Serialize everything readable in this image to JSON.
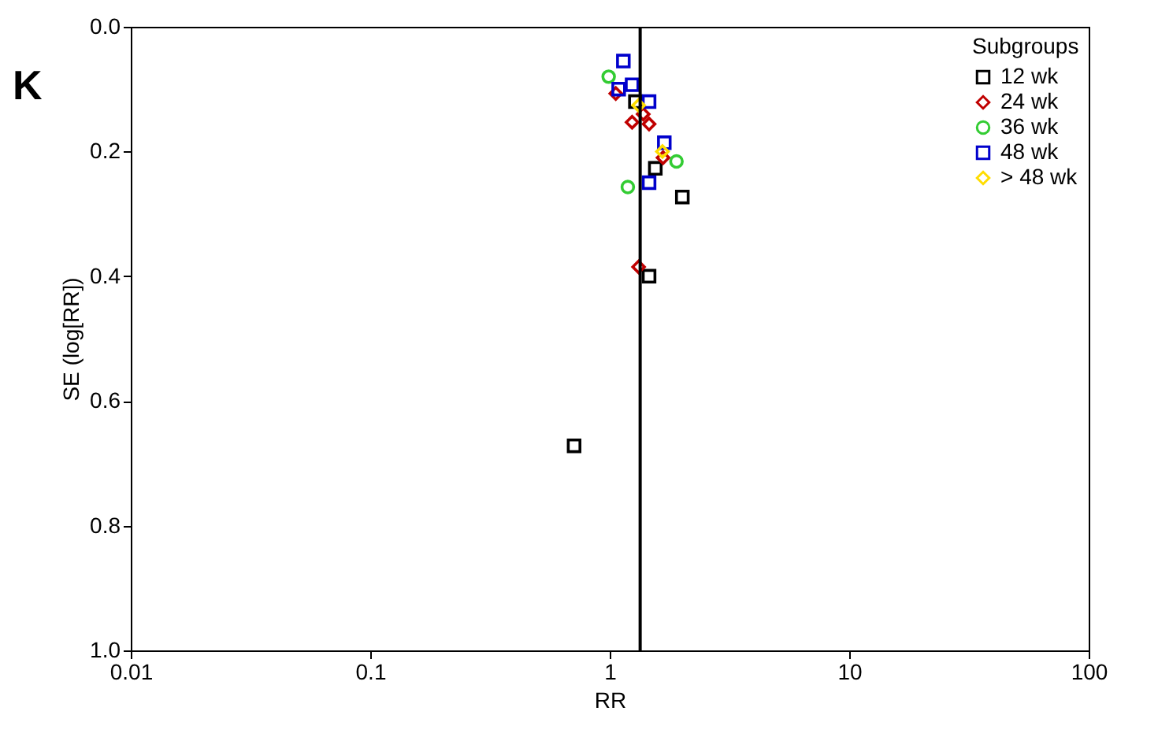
{
  "chart_data": {
    "type": "scatter",
    "title": "K",
    "xlabel": "RR",
    "ylabel": "SE (log[RR])",
    "legend_title": "Subgroups",
    "legend": "top right",
    "log": "x",
    "xlim": [
      0.01,
      100
    ],
    "xticks": [
      0.01,
      0.1,
      1,
      10,
      100
    ],
    "ylim": [
      1,
      0
    ],
    "yticks": [
      {
        "value": 0,
        "label": "0.0"
      },
      {
        "value": 0.2,
        "label": "0.2"
      },
      {
        "value": 0.4,
        "label": "0.4"
      },
      {
        "value": 0.6,
        "label": "0.6"
      },
      {
        "value": 0.8,
        "label": "0.8"
      },
      {
        "value": 1,
        "label": "1.0"
      }
    ],
    "grid": false,
    "ref_lines": [
      {
        "axis": "x",
        "value": 1.34,
        "color": "#000000"
      }
    ],
    "series": [
      {
        "name": "12 wk",
        "color": "#000000",
        "marker": "square",
        "x": [
          1.28,
          1.55,
          2.01,
          1.46,
          0.71
        ],
        "values": [
          0.12,
          0.227,
          0.273,
          0.4,
          0.672
        ]
      },
      {
        "name": "24 wk",
        "color": "#c00000",
        "marker": "diamond",
        "x": [
          1.06,
          1.24,
          1.46,
          1.38,
          1.67,
          1.32
        ],
        "values": [
          0.107,
          0.153,
          0.156,
          0.14,
          0.21,
          0.385
        ]
      },
      {
        "name": "36 wk",
        "color": "#33cc33",
        "marker": "circle",
        "x": [
          0.99,
          1.9,
          1.19
        ],
        "values": [
          0.08,
          0.216,
          0.257
        ]
      },
      {
        "name": "48 wk",
        "color": "#0000cc",
        "marker": "square",
        "x": [
          1.14,
          1.09,
          1.24,
          1.46,
          1.69,
          1.46
        ],
        "values": [
          0.055,
          0.1,
          0.093,
          0.12,
          0.186,
          0.25
        ]
      },
      {
        "name": "> 48 wk",
        "color": "#ffdd00",
        "marker": "diamond",
        "x": [
          1.32,
          1.66
        ],
        "values": [
          0.126,
          0.2
        ]
      }
    ]
  }
}
